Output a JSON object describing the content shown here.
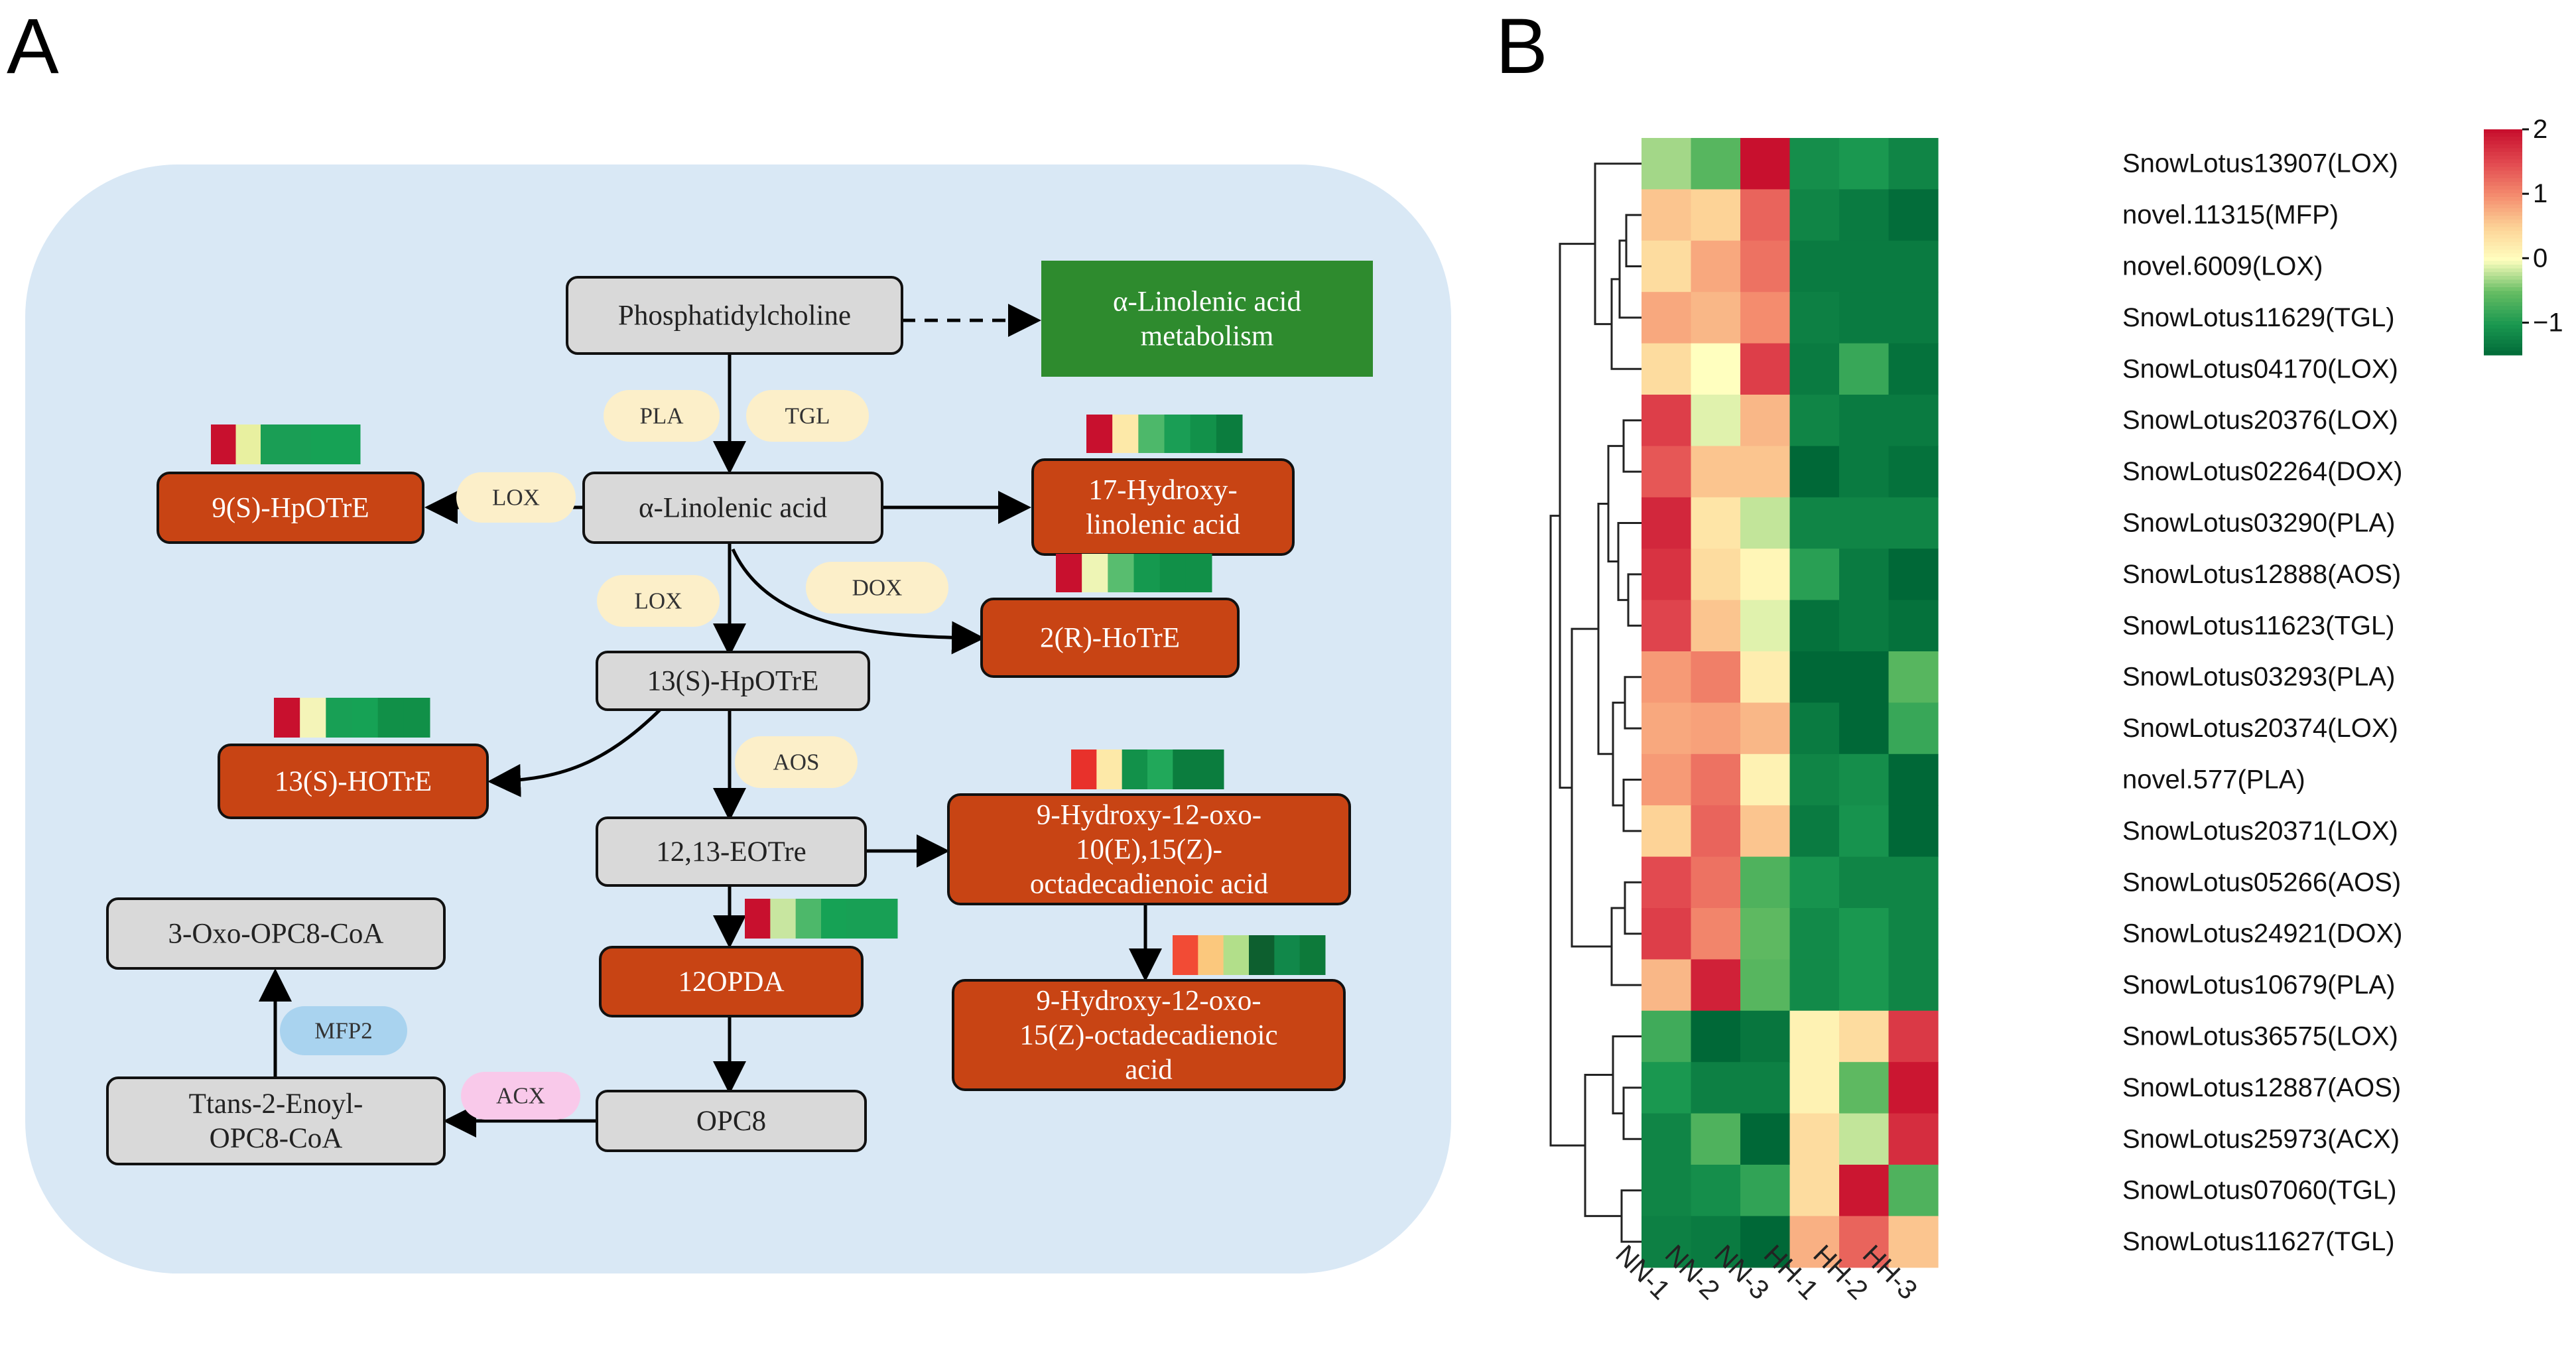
{
  "panels": {
    "a": "A",
    "b": "B"
  },
  "pathway": {
    "nodes": [
      {
        "id": "pc",
        "label": "Phosphatidylcholine",
        "kind": "gray"
      },
      {
        "id": "alm",
        "label": "α-Linolenic acid\nmetabolism",
        "kind": "green"
      },
      {
        "id": "la",
        "label": "α-Linolenic acid",
        "kind": "gray"
      },
      {
        "id": "hpotre9",
        "label": "9(S)-HpOTrE",
        "kind": "orange"
      },
      {
        "id": "hyd17",
        "label": "17-Hydroxy-\nlinolenic acid",
        "kind": "orange"
      },
      {
        "id": "hotre2",
        "label": "2(R)-HoTrE",
        "kind": "orange"
      },
      {
        "id": "hpotre13",
        "label": "13(S)-HpOTrE",
        "kind": "gray"
      },
      {
        "id": "hotre13",
        "label": "13(S)-HOTrE",
        "kind": "orange"
      },
      {
        "id": "eotre",
        "label": "12,13-EOTre",
        "kind": "gray"
      },
      {
        "id": "hydoxo1",
        "label": "9-Hydroxy-12-oxo-\n10(E),15(Z)-\noctadecadienoic acid",
        "kind": "orange"
      },
      {
        "id": "opda",
        "label": "12OPDA",
        "kind": "orange"
      },
      {
        "id": "hydoxo2",
        "label": "9-Hydroxy-12-oxo-\n15(Z)-octadecadienoic\nacid",
        "kind": "orange"
      },
      {
        "id": "opc8",
        "label": "OPC8",
        "kind": "gray"
      },
      {
        "id": "trans",
        "label": "Ttans-2-Enoyl-\nOPC8-CoA",
        "kind": "gray"
      },
      {
        "id": "oxo",
        "label": "3-Oxo-OPC8-CoA",
        "kind": "gray"
      }
    ],
    "enzymes": [
      {
        "id": "pla",
        "label": "PLA",
        "color": "#fcefc9"
      },
      {
        "id": "tgl",
        "label": "TGL",
        "color": "#fcefc9"
      },
      {
        "id": "lox1",
        "label": "LOX",
        "color": "#fcefc9"
      },
      {
        "id": "lox2",
        "label": "LOX",
        "color": "#fcefc9"
      },
      {
        "id": "dox",
        "label": "DOX",
        "color": "#fcefc9"
      },
      {
        "id": "aos",
        "label": "AOS",
        "color": "#fcefc9"
      },
      {
        "id": "mfp2",
        "label": "MFP2",
        "color": "#a9d3ef"
      },
      {
        "id": "acx",
        "label": "ACX",
        "color": "#f9c9ea"
      }
    ],
    "mini_heatmaps": [
      {
        "id": "hm9",
        "colors": [
          "#c8102e",
          "#e8f0a0",
          "#1a9e55",
          "#1a9e55",
          "#16a255",
          "#16a255"
        ]
      },
      {
        "id": "hm17",
        "colors": [
          "#c8102e",
          "#fde9a8",
          "#4db86a",
          "#1a9e55",
          "#12914a",
          "#0b7d3e"
        ]
      },
      {
        "id": "hm2",
        "colors": [
          "#c8102e",
          "#eef5b5",
          "#58bd6f",
          "#15994f",
          "#119048",
          "#119048"
        ]
      },
      {
        "id": "hm13",
        "colors": [
          "#c8102e",
          "#f4f4b8",
          "#18a055",
          "#16a255",
          "#119048",
          "#119048"
        ]
      },
      {
        "id": "hmeo",
        "colors": [
          "#e8312b",
          "#fde9a8",
          "#12914a",
          "#21a85a",
          "#0b7d3e",
          "#0b7d3e"
        ]
      },
      {
        "id": "hmop",
        "colors": [
          "#c8102e",
          "#c8e6a0",
          "#4db86a",
          "#16a255",
          "#18a055",
          "#18a055"
        ]
      },
      {
        "id": "hmhy",
        "colors": [
          "#f24b35",
          "#fbc87d",
          "#b2df8a",
          "#0d5f2f",
          "#11884a",
          "#0d7a3a"
        ]
      }
    ]
  },
  "heatmap": {
    "columns": [
      "NN-1",
      "NN-2",
      "NN-3",
      "HH-1",
      "HH-2",
      "HH-3"
    ],
    "rows": [
      {
        "gene": "SnowLotus13907(LOX)",
        "values": [
          -0.3,
          -0.6,
          2.0,
          -1.1,
          -1.0,
          -1.2
        ]
      },
      {
        "gene": "novel.11315(MFP)",
        "values": [
          0.6,
          0.5,
          1.3,
          -1.2,
          -1.3,
          -1.45
        ]
      },
      {
        "gene": "novel.6009(LOX)",
        "values": [
          0.4,
          0.8,
          1.2,
          -1.3,
          -1.3,
          -1.3
        ]
      },
      {
        "gene": "SnowLotus11629(TGL)",
        "values": [
          0.8,
          0.7,
          1.0,
          -1.25,
          -1.3,
          -1.3
        ]
      },
      {
        "gene": "SnowLotus04170(LOX)",
        "values": [
          0.4,
          0.0,
          1.6,
          -1.3,
          -0.8,
          -1.4
        ]
      },
      {
        "gene": "SnowLotus20376(LOX)",
        "values": [
          1.6,
          -0.1,
          0.7,
          -1.2,
          -1.3,
          -1.3
        ]
      },
      {
        "gene": "SnowLotus02264(DOX)",
        "values": [
          1.4,
          0.6,
          0.6,
          -1.5,
          -1.3,
          -1.4
        ]
      },
      {
        "gene": "SnowLotus03290(PLA)",
        "values": [
          1.8,
          0.3,
          -0.2,
          -1.2,
          -1.2,
          -1.2
        ]
      },
      {
        "gene": "SnowLotus12888(AOS)",
        "values": [
          1.7,
          0.4,
          0.1,
          -0.9,
          -1.3,
          -1.5
        ]
      },
      {
        "gene": "SnowLotus11623(TGL)",
        "values": [
          1.55,
          0.6,
          -0.1,
          -1.4,
          -1.3,
          -1.4
        ]
      },
      {
        "gene": "SnowLotus03293(PLA)",
        "values": [
          0.9,
          1.1,
          0.2,
          -1.5,
          -1.7,
          -0.6
        ]
      },
      {
        "gene": "SnowLotus20374(LOX)",
        "values": [
          0.8,
          0.85,
          0.7,
          -1.3,
          -1.8,
          -0.8
        ]
      },
      {
        "gene": "novel.577(PLA)",
        "values": [
          0.9,
          1.2,
          0.15,
          -1.2,
          -1.1,
          -1.55
        ]
      },
      {
        "gene": "SnowLotus20371(LOX)",
        "values": [
          0.5,
          1.3,
          0.6,
          -1.3,
          -1.05,
          -1.5
        ]
      },
      {
        "gene": "SnowLotus05266(AOS)",
        "values": [
          1.5,
          1.2,
          -0.65,
          -1.05,
          -1.2,
          -1.2
        ]
      },
      {
        "gene": "SnowLotus24921(DOX)",
        "values": [
          1.6,
          1.05,
          -0.55,
          -1.15,
          -1.0,
          -1.2
        ]
      },
      {
        "gene": "SnowLotus10679(PLA)",
        "values": [
          0.7,
          1.85,
          -0.6,
          -1.15,
          -1.0,
          -1.2
        ]
      },
      {
        "gene": "SnowLotus36575(LOX)",
        "values": [
          -0.75,
          -1.55,
          -1.35,
          0.15,
          0.4,
          1.65
        ]
      },
      {
        "gene": "SnowLotus12887(AOS)",
        "values": [
          -1.0,
          -1.25,
          -1.25,
          0.15,
          -0.55,
          1.95
        ]
      },
      {
        "gene": "SnowLotus25973(ACX)",
        "values": [
          -1.2,
          -0.65,
          -1.6,
          0.4,
          -0.2,
          1.75
        ]
      },
      {
        "gene": "SnowLotus07060(TGL)",
        "values": [
          -1.2,
          -1.1,
          -0.85,
          0.4,
          1.95,
          -0.65
        ]
      },
      {
        "gene": "SnowLotus11627(TGL)",
        "values": [
          -1.25,
          -1.3,
          -1.55,
          0.75,
          1.3,
          0.6
        ]
      }
    ],
    "legend": {
      "ticks": [
        2,
        1,
        0,
        -1
      ],
      "tick_labels": [
        "2",
        "1",
        "0",
        "−1"
      ],
      "min": -1.5,
      "max": 2.0
    }
  }
}
